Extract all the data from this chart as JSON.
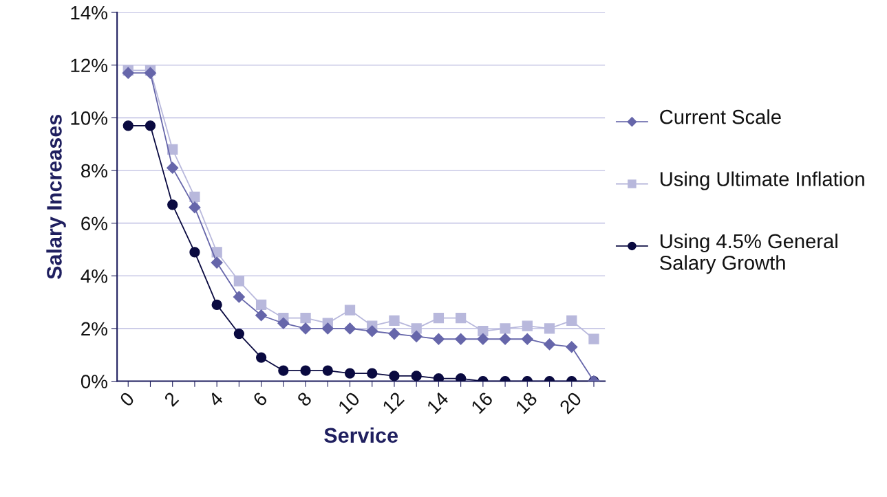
{
  "chart_data": {
    "type": "line",
    "xlabel": "Service",
    "ylabel": "Salary Increases",
    "categories": [
      "0",
      null,
      "2",
      null,
      "4",
      null,
      "6",
      null,
      "8",
      null,
      "10",
      null,
      "12",
      null,
      "14",
      null,
      "16",
      null,
      "18",
      null,
      "20",
      null
    ],
    "series": [
      {
        "name": "Current Scale",
        "color": "#6666aa",
        "marker": "diamond",
        "values": [
          11.7,
          11.7,
          8.1,
          6.6,
          4.5,
          3.2,
          2.5,
          2.2,
          2.0,
          2.0,
          2.0,
          1.9,
          1.8,
          1.7,
          1.6,
          1.6,
          1.6,
          1.6,
          1.6,
          1.4,
          1.3,
          0.0
        ]
      },
      {
        "name": "Using Ultimate Inflation",
        "color": "#b8b8dc",
        "marker": "square",
        "values": [
          11.8,
          11.8,
          8.8,
          7.0,
          4.9,
          3.8,
          2.9,
          2.4,
          2.4,
          2.2,
          2.7,
          2.1,
          2.3,
          2.0,
          2.4,
          2.4,
          1.9,
          2.0,
          2.1,
          2.0,
          2.3,
          1.6
        ]
      },
      {
        "name": "Using 4.5% General Salary Growth",
        "color": "#0a0a40",
        "marker": "circle",
        "values": [
          9.7,
          9.7,
          6.7,
          4.9,
          2.9,
          1.8,
          0.9,
          0.4,
          0.4,
          0.4,
          0.3,
          0.3,
          0.2,
          0.2,
          0.1,
          0.1,
          0.0,
          0.0,
          0.0,
          0.0,
          0.0,
          0.0
        ]
      }
    ],
    "ylim": [
      0,
      14
    ],
    "yticks": [
      {
        "value": 0,
        "label": "0%"
      },
      {
        "value": 2,
        "label": "2%"
      },
      {
        "value": 4,
        "label": "4%"
      },
      {
        "value": 6,
        "label": "6%"
      },
      {
        "value": 8,
        "label": "8%"
      },
      {
        "value": 10,
        "label": "10%"
      },
      {
        "value": 12,
        "label": "12%"
      },
      {
        "value": 14,
        "label": "14%"
      }
    ],
    "grid": "y",
    "legend": "right",
    "line_style": "solid"
  }
}
